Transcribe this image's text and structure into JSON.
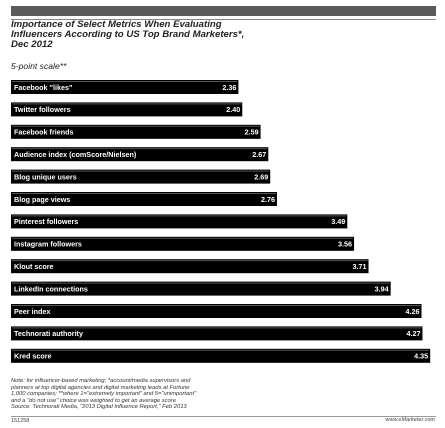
{
  "header": {
    "title_lines": [
      "Importance of Select Metrics When Evaluating",
      "Influencers According to US Top Brand Marketers*,",
      "Dec 2012"
    ],
    "subtitle": "5-point scale**"
  },
  "chart_data": {
    "type": "bar",
    "orientation": "horizontal",
    "categories": [
      "Facebook \"likes\"",
      "Twitter followers",
      "Facebook friends",
      "Audience index (comScore/Nielsen)",
      "Blog unique users",
      "Blog page views",
      "Pinterest followers",
      "Instagram followers",
      "Klout score",
      "LinkedIn connections",
      "Peer index",
      "Technorati authority",
      "Kred score"
    ],
    "values": [
      2.36,
      2.4,
      2.59,
      2.67,
      2.69,
      2.76,
      3.49,
      3.56,
      3.71,
      3.94,
      4.26,
      4.27,
      4.35
    ],
    "value_labels": [
      "2.36",
      "2.40",
      "2.59",
      "2.67",
      "2.69",
      "2.76",
      "3.49",
      "3.56",
      "3.71",
      "3.94",
      "4.26",
      "4.27",
      "4.35"
    ],
    "bar_color": "#000000",
    "label_color": "#ffffff",
    "xlim": [
      0,
      4.4
    ],
    "grid": false,
    "legend": "none"
  },
  "notes": [
    "Note: for influencer-based marketing; *account/media supervisors and",
    "planners at top digital agencies and digital marketing leads at Fortune",
    "1,000 companies; **where 1=\"extremely important\" and 5=\"unimportant\"",
    "and a \"do not use\" choice was weighted to get an average score",
    "Source: Technorati Media, \"2013 Digital Influence Report,\" Feb 2013"
  ],
  "footer": {
    "id": "151258",
    "site": "www.eMarketer.com"
  }
}
